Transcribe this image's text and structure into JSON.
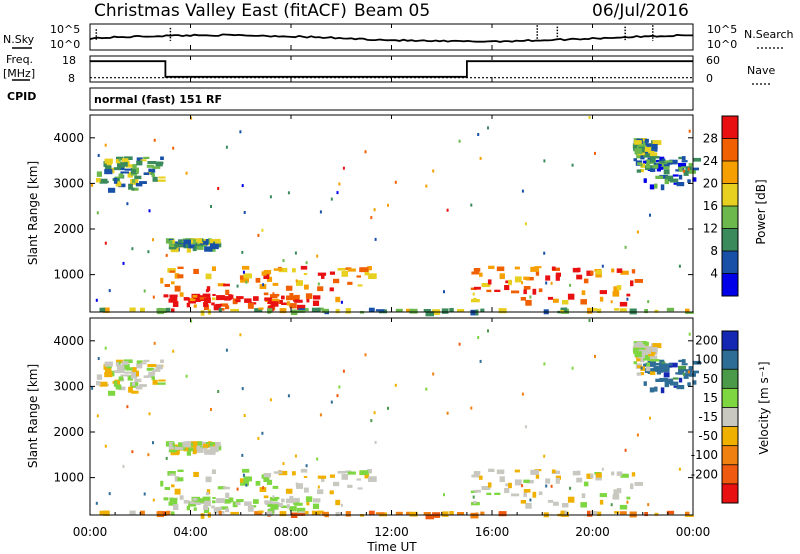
{
  "header": {
    "site": "Christmas Valley East (fitACF)",
    "beam": "Beam 05",
    "date": "06/Jul/2016"
  },
  "panels": {
    "noise": {
      "left_label": "N.Sky",
      "left_ticks": [
        "10^5",
        "10^0"
      ],
      "right_label": "N.Search",
      "right_ticks": [
        "10^5",
        "10^0"
      ]
    },
    "freq": {
      "left_label_1": "Freq.",
      "left_label_2": "[MHz]",
      "left_ticks": [
        "18",
        "8"
      ],
      "right_label": "Nave",
      "right_ticks": [
        "60",
        "0"
      ]
    },
    "cpid": {
      "label": "CPID",
      "text": "normal (fast) 151 RF"
    }
  },
  "colorbars": {
    "power": {
      "title": "Power [dB]",
      "tick_labels": [
        "4",
        "8",
        "12",
        "16",
        "20",
        "24",
        "28"
      ],
      "colors": [
        "#0000e8",
        "#1850a8",
        "#3a8a5c",
        "#6cb84c",
        "#e8d020",
        "#f5a000",
        "#f06000",
        "#e81010"
      ]
    },
    "velocity": {
      "title": "Velocity [m s⁻¹]",
      "tick_labels": [
        "200",
        "100",
        "50",
        "15",
        "-15",
        "-50",
        "-100",
        "-200"
      ],
      "colors": [
        "#1428b4",
        "#2e6e96",
        "#4a9a4a",
        "#7ed640",
        "#c8c8c0",
        "#f0b000",
        "#f08010",
        "#f05a10",
        "#e81010"
      ]
    }
  },
  "axes": {
    "ylabel": "Slant Range [km]",
    "y_ticks": [
      "4000",
      "3000",
      "2000",
      "1000"
    ],
    "x_ticks": [
      "00:00",
      "04:00",
      "08:00",
      "12:00",
      "16:00",
      "20:00",
      "00:00"
    ],
    "xlabel": "Time UT"
  },
  "chart_data": {
    "type": "heatmap",
    "title": "Christmas Valley East (fitACF) Beam 05 06/Jul/2016",
    "xlabel": "Time UT",
    "ylabel": "Slant Range [km]",
    "xlim_hours": [
      0,
      24
    ],
    "ylim_km": [
      180,
      4500
    ],
    "frequency_mhz": [
      {
        "from": 0,
        "to": 3,
        "value": 16
      },
      {
        "from": 3,
        "to": 15,
        "value": 10
      },
      {
        "from": 15,
        "to": 24,
        "value": 16
      }
    ],
    "nave_level": 10,
    "power_db_range": [
      2,
      32
    ],
    "velocity_range_ms": [
      -250,
      250
    ],
    "scatter_regions": [
      {
        "x": [
          0.2,
          2.8
        ],
        "y": [
          2700,
          3600
        ],
        "power_db": 12,
        "velocity_ms": 0
      },
      {
        "x": [
          22.0,
          24.0
        ],
        "y": [
          2900,
          3600
        ],
        "power_db": 8,
        "velocity_ms": 150
      },
      {
        "x": [
          21.6,
          22.4
        ],
        "y": [
          3300,
          4000
        ],
        "power_db": 12,
        "velocity_ms": 0
      },
      {
        "x": [
          3.0,
          5.0
        ],
        "y": [
          1550,
          1800
        ],
        "power_db": 12,
        "velocity_ms": 0
      },
      {
        "x": [
          2.6,
          11.8
        ],
        "y": [
          300,
          1200
        ],
        "power_db": 24,
        "velocity_ms": -5
      },
      {
        "x": [
          2.8,
          9.0
        ],
        "y": [
          200,
          600
        ],
        "power_db": 30,
        "velocity_ms": 20
      },
      {
        "x": [
          15.0,
          21.8
        ],
        "y": [
          300,
          1200
        ],
        "power_db": 26,
        "velocity_ms": -5
      },
      {
        "x": [
          0.0,
          24.0
        ],
        "y": [
          180,
          280
        ],
        "power_db": 14,
        "velocity_ms": -60
      }
    ]
  }
}
